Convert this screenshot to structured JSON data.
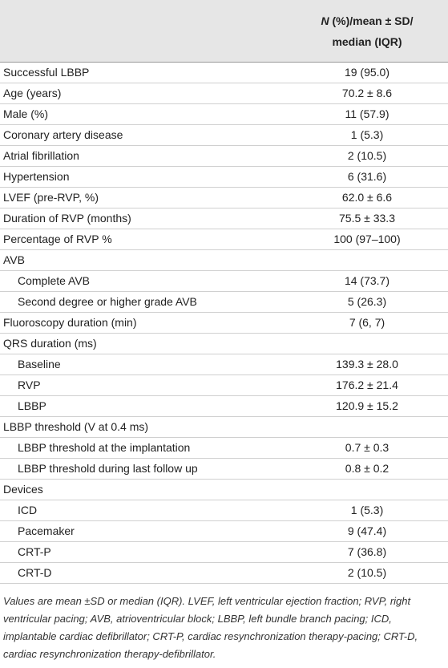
{
  "table": {
    "header": {
      "italic": "N",
      "line1": " (%)/mean ± SD/",
      "line2": "median (IQR)"
    },
    "rows": [
      {
        "label": "Successful LBBP",
        "value": "19 (95.0)",
        "indent": false
      },
      {
        "label": "Age (years)",
        "value": "70.2 ± 8.6",
        "indent": false
      },
      {
        "label": "Male (%)",
        "value": "11 (57.9)",
        "indent": false
      },
      {
        "label": "Coronary artery disease",
        "value": "1 (5.3)",
        "indent": false
      },
      {
        "label": "Atrial fibrillation",
        "value": "2 (10.5)",
        "indent": false
      },
      {
        "label": "Hypertension",
        "value": "6 (31.6)",
        "indent": false
      },
      {
        "label": "LVEF (pre-RVP, %)",
        "value": "62.0 ± 6.6",
        "indent": false
      },
      {
        "label": "Duration of RVP (months)",
        "value": "75.5 ± 33.3",
        "indent": false
      },
      {
        "label": "Percentage of RVP %",
        "value": "100 (97–100)",
        "indent": false
      },
      {
        "label": "AVB",
        "indent": false
      },
      {
        "label": "Complete AVB",
        "value": "14 (73.7)",
        "indent": true
      },
      {
        "label": "Second degree or higher grade AVB",
        "value": "5 (26.3)",
        "indent": true
      },
      {
        "label": "Fluoroscopy duration (min)",
        "value": "7 (6, 7)",
        "indent": false
      },
      {
        "label": "QRS duration (ms)",
        "indent": false
      },
      {
        "label": "Baseline",
        "value": "139.3 ± 28.0",
        "indent": true
      },
      {
        "label": "RVP",
        "value": "176.2 ± 21.4",
        "indent": true
      },
      {
        "label": "LBBP",
        "value": "120.9 ± 15.2",
        "indent": true
      },
      {
        "label": "LBBP threshold (V at 0.4 ms)",
        "indent": false
      },
      {
        "label": "LBBP threshold at the implantation",
        "value": "0.7 ± 0.3",
        "indent": true
      },
      {
        "label": "LBBP threshold during last follow up",
        "value": "0.8 ± 0.2",
        "indent": true
      },
      {
        "label": "Devices",
        "indent": false
      },
      {
        "label": "ICD",
        "value": "1 (5.3)",
        "indent": true
      },
      {
        "label": "Pacemaker",
        "value": "9 (47.4)",
        "indent": true
      },
      {
        "label": "CRT-P",
        "value": "7 (36.8)",
        "indent": true
      },
      {
        "label": "CRT-D",
        "value": "2 (10.5)",
        "indent": true
      }
    ],
    "footnote": "Values are mean ±SD or median (IQR). LVEF, left ventricular ejection fraction; RVP, right ventricular pacing; AVB, atrioventricular block; LBBP, left bundle branch pacing; ICD, implantable cardiac defibrillator; CRT-P, cardiac resynchronization therapy-pacing; CRT-D, cardiac resynchronization therapy-defibrillator."
  }
}
